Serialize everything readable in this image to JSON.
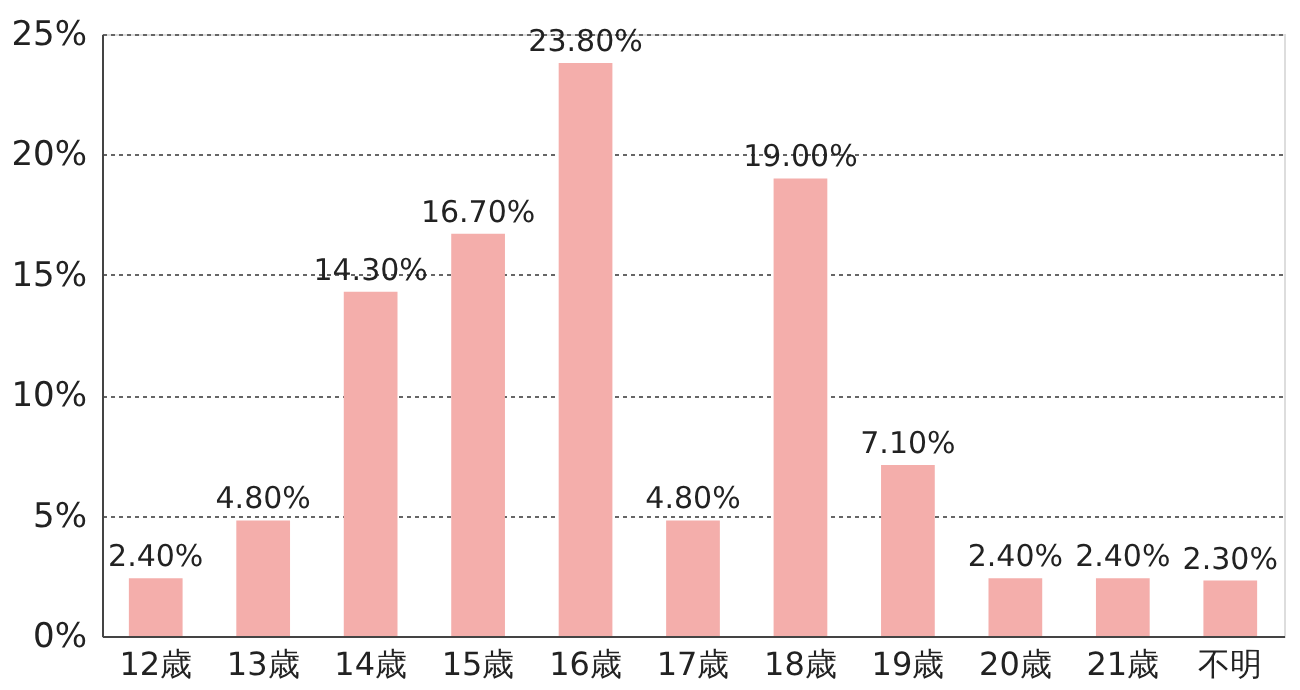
{
  "chart_data": {
    "type": "bar",
    "categories": [
      "12歳",
      "13歳",
      "14歳",
      "15歳",
      "16歳",
      "17歳",
      "18歳",
      "19歳",
      "20歳",
      "21歳",
      "不明"
    ],
    "values": [
      2.4,
      4.8,
      14.3,
      16.7,
      23.8,
      4.8,
      19.0,
      7.1,
      2.4,
      2.4,
      2.3
    ],
    "value_labels": [
      "2.40%",
      "4.80%",
      "14.30%",
      "16.70%",
      "23.80%",
      "4.80%",
      "19.00%",
      "7.10%",
      "2.40%",
      "2.40%",
      "2.30%"
    ],
    "color": "#f4aeab",
    "ylim": [
      0,
      25
    ],
    "yticks": [
      {
        "value": 0,
        "label": "0%"
      },
      {
        "value": 5,
        "label": "5%"
      },
      {
        "value": 10,
        "label": "10%"
      },
      {
        "value": 15,
        "label": "15%"
      },
      {
        "value": 20,
        "label": "20%"
      },
      {
        "value": 25,
        "label": "25%"
      }
    ],
    "grid": "y"
  }
}
